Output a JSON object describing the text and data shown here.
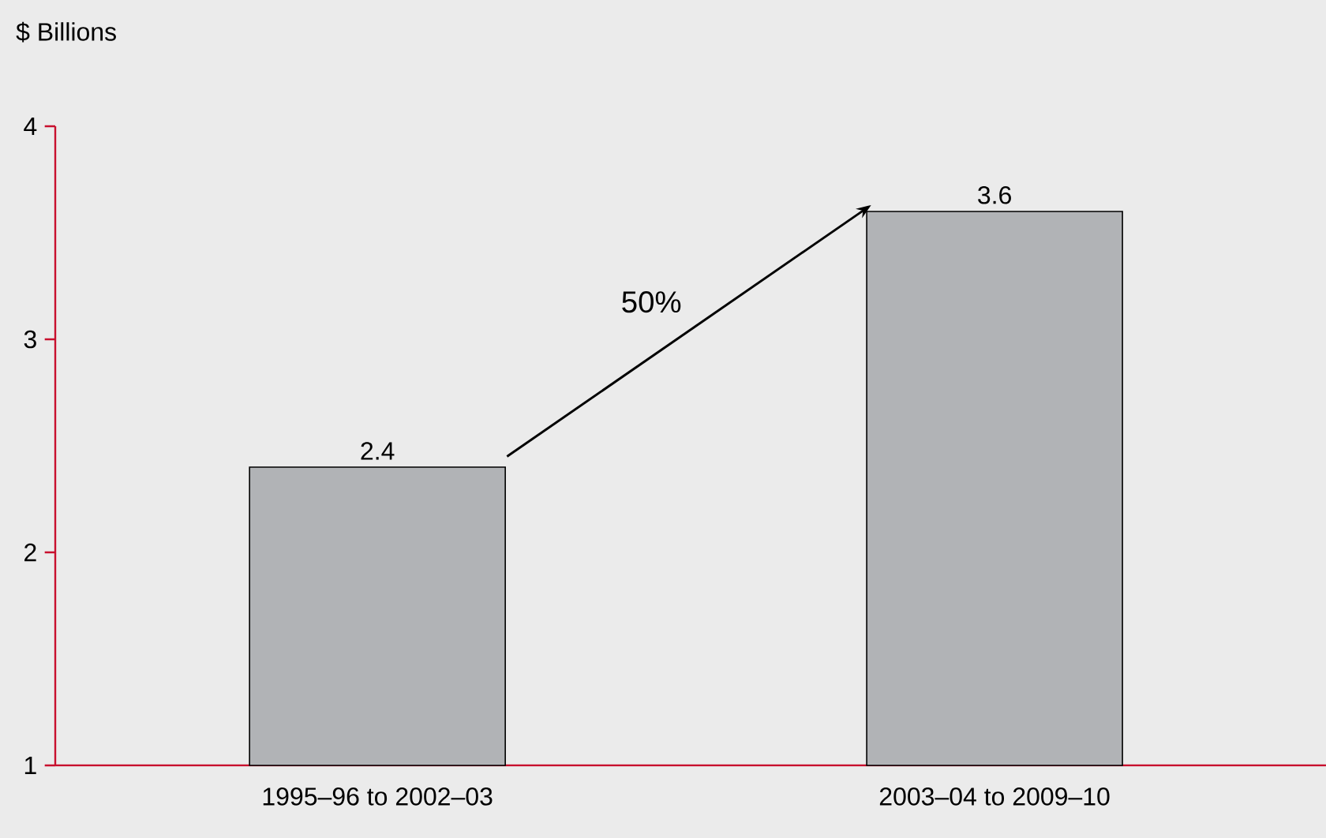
{
  "chart_data": {
    "type": "bar",
    "ylabel": "$ Billions",
    "categories": [
      "1995–96 to 2002–03",
      "2003–04 to 2009–10"
    ],
    "values": [
      2.4,
      3.6
    ],
    "color": "#b1b3b6",
    "ylim": [
      1,
      4
    ],
    "yticks": [
      1,
      2,
      3,
      4
    ],
    "grid": false,
    "data_labels": true,
    "annotations": [
      "50%"
    ]
  }
}
